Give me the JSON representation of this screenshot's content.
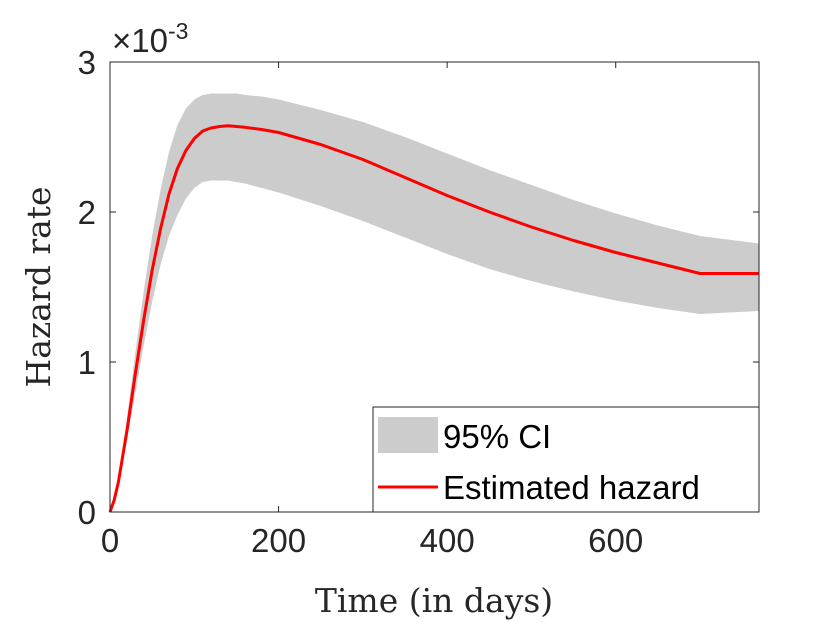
{
  "chart_data": {
    "type": "line",
    "title": "",
    "xlabel": "Time (in days)",
    "ylabel": "Hazard rate",
    "xlim": [
      0,
      770
    ],
    "ylim": [
      0,
      0.003
    ],
    "x_ticks": [
      0,
      200,
      400,
      600
    ],
    "x_tick_labels": [
      "0",
      "200",
      "400",
      "600"
    ],
    "y_ticks": [
      0,
      0.001,
      0.002,
      0.003
    ],
    "y_tick_labels": [
      "0",
      "1",
      "2",
      "3"
    ],
    "y_exponent_prefix": "×10",
    "y_exponent_power": "-3",
    "grid": false,
    "legend_position": "bottom-right",
    "series": [
      {
        "name": "Estimated hazard",
        "kind": "line",
        "color": "#ff0000",
        "x": [
          0,
          5,
          10,
          20,
          30,
          40,
          50,
          60,
          70,
          80,
          90,
          100,
          110,
          120,
          130,
          140,
          150,
          160,
          180,
          200,
          250,
          300,
          350,
          400,
          450,
          500,
          550,
          600,
          650,
          700,
          770
        ],
        "y": [
          0.0,
          8e-05,
          0.0002,
          0.00054,
          0.00092,
          0.00128,
          0.00161,
          0.00189,
          0.00212,
          0.00229,
          0.00241,
          0.00249,
          0.00254,
          0.00256,
          0.00257,
          0.002575,
          0.00257,
          0.002565,
          0.00255,
          0.00253,
          0.00245,
          0.00235,
          0.00223,
          0.00211,
          0.002,
          0.0019,
          0.00181,
          0.00173,
          0.00166,
          0.00159,
          0.00159
        ]
      },
      {
        "name": "95% CI",
        "kind": "band",
        "color": "#cccccc",
        "x": [
          0,
          5,
          10,
          20,
          30,
          40,
          50,
          60,
          70,
          80,
          90,
          100,
          110,
          120,
          130,
          140,
          150,
          160,
          180,
          200,
          250,
          300,
          350,
          400,
          450,
          500,
          550,
          600,
          650,
          700,
          770
        ],
        "lower": [
          0.0,
          7e-05,
          0.00018,
          0.00047,
          0.00079,
          0.00111,
          0.0014,
          0.00165,
          0.00184,
          0.00198,
          0.00209,
          0.00216,
          0.0022,
          0.00221,
          0.00221,
          0.00221,
          0.0022,
          0.00219,
          0.00216,
          0.00213,
          0.00204,
          0.00194,
          0.00183,
          0.00172,
          0.00162,
          0.00154,
          0.00147,
          0.00141,
          0.00136,
          0.00132,
          0.00134
        ],
        "upper": [
          0.0,
          0.0001,
          0.00023,
          0.00062,
          0.00106,
          0.00147,
          0.00184,
          0.00215,
          0.0024,
          0.00258,
          0.00269,
          0.00275,
          0.00278,
          0.00279,
          0.00279,
          0.00279,
          0.00279,
          0.00278,
          0.00277,
          0.00275,
          0.00268,
          0.0026,
          0.0025,
          0.00239,
          0.00228,
          0.00218,
          0.00208,
          0.00199,
          0.00191,
          0.00184,
          0.00179
        ]
      }
    ],
    "legend": [
      {
        "label": "95% CI",
        "kind": "band",
        "color": "#cccccc"
      },
      {
        "label": "Estimated hazard",
        "kind": "line",
        "color": "#ff0000"
      }
    ]
  }
}
